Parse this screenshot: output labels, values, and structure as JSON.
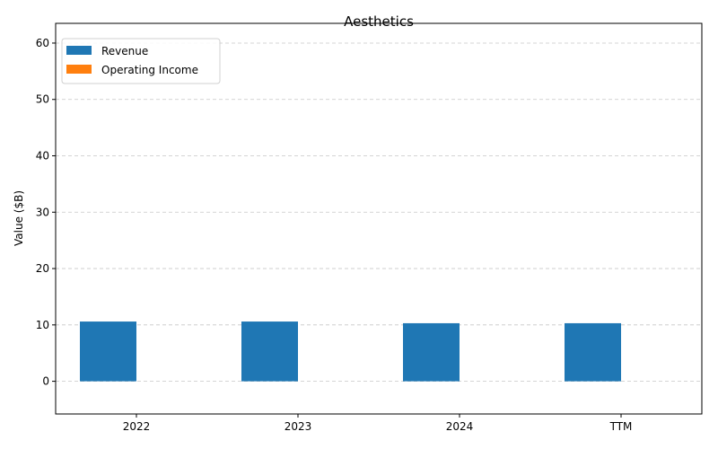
{
  "chart_data": {
    "type": "bar",
    "title": "Aesthetics",
    "xlabel": "",
    "ylabel": "Value ($B)",
    "categories": [
      "2022",
      "2023",
      "2024",
      "TTM"
    ],
    "series": [
      {
        "name": "Revenue",
        "color": "#1f77b4",
        "values": [
          10.6,
          10.6,
          10.3,
          10.3
        ]
      },
      {
        "name": "Operating Income",
        "color": "#ff7f0e",
        "values": [
          0,
          0,
          0,
          0
        ]
      }
    ],
    "ylim": [
      -5.8,
      63.5
    ],
    "yticks": [
      0,
      10,
      20,
      30,
      40,
      50,
      60
    ],
    "grid": "y-dashed",
    "legend": "top-left"
  }
}
